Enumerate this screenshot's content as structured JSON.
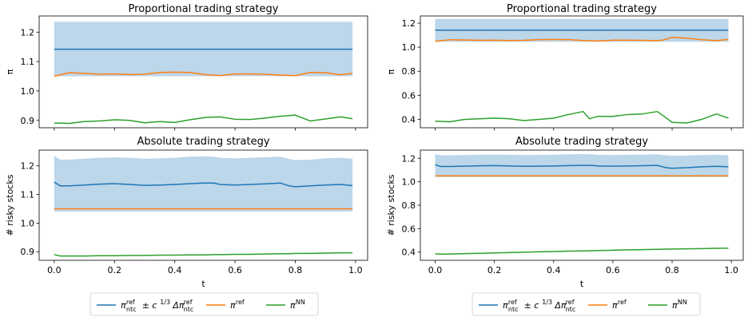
{
  "colors": {
    "band": "#a6c8e3",
    "ntc": "#1f77b4",
    "ref": "#ff7f0e",
    "nn": "#2ca02c"
  },
  "chart_data": [
    {
      "type": "line",
      "title": "Proportional trading strategy",
      "ylabel": "π",
      "xlabel": "",
      "xlim": [
        -0.05,
        1.04
      ],
      "ylim": [
        0.875,
        1.255
      ],
      "yticks": [
        0.9,
        1.0,
        1.1,
        1.2
      ],
      "yticklabels": [
        "0.9",
        "1.0",
        "1.1",
        "1.2"
      ],
      "xticks": [
        0.0,
        0.2,
        0.4,
        0.6,
        0.8,
        1.0
      ],
      "xticklabels": [],
      "x": [
        0.0,
        0.05,
        0.1,
        0.15,
        0.2,
        0.25,
        0.3,
        0.35,
        0.4,
        0.45,
        0.5,
        0.55,
        0.6,
        0.65,
        0.7,
        0.75,
        0.8,
        0.85,
        0.9,
        0.95,
        0.99
      ],
      "band": {
        "lower": [
          1.05,
          1.05,
          1.05,
          1.05,
          1.05,
          1.05,
          1.05,
          1.05,
          1.05,
          1.05,
          1.05,
          1.05,
          1.05,
          1.05,
          1.05,
          1.05,
          1.05,
          1.05,
          1.05,
          1.05,
          1.05
        ],
        "upper": [
          1.235,
          1.235,
          1.235,
          1.235,
          1.235,
          1.235,
          1.235,
          1.235,
          1.235,
          1.235,
          1.235,
          1.235,
          1.235,
          1.235,
          1.235,
          1.235,
          1.235,
          1.235,
          1.235,
          1.235,
          1.235
        ]
      },
      "series": [
        {
          "key": "ntc",
          "values": [
            1.142,
            1.142,
            1.142,
            1.142,
            1.142,
            1.142,
            1.142,
            1.142,
            1.142,
            1.142,
            1.142,
            1.142,
            1.142,
            1.142,
            1.142,
            1.142,
            1.142,
            1.142,
            1.142,
            1.142,
            1.142
          ]
        },
        {
          "key": "ref",
          "values": [
            1.05,
            1.062,
            1.06,
            1.057,
            1.058,
            1.056,
            1.057,
            1.063,
            1.064,
            1.063,
            1.056,
            1.052,
            1.058,
            1.058,
            1.057,
            1.054,
            1.052,
            1.063,
            1.062,
            1.055,
            1.06
          ]
        },
        {
          "key": "nn",
          "values": [
            0.891,
            0.89,
            0.896,
            0.898,
            0.902,
            0.9,
            0.892,
            0.896,
            0.893,
            0.902,
            0.91,
            0.912,
            0.904,
            0.903,
            0.908,
            0.914,
            0.918,
            0.898,
            0.905,
            0.912,
            0.906
          ]
        }
      ]
    },
    {
      "type": "line",
      "title": "Proportional trading strategy",
      "ylabel": "π",
      "xlabel": "",
      "xlim": [
        -0.05,
        1.04
      ],
      "ylim": [
        0.33,
        1.26
      ],
      "yticks": [
        0.4,
        0.6,
        0.8,
        1.0,
        1.2
      ],
      "yticklabels": [
        "0.4",
        "0.6",
        "0.8",
        "1.0",
        "1.2"
      ],
      "xticks": [
        0.0,
        0.2,
        0.4,
        0.6,
        0.8,
        1.0
      ],
      "xticklabels": [],
      "x": [
        0.0,
        0.05,
        0.1,
        0.15,
        0.2,
        0.25,
        0.3,
        0.35,
        0.4,
        0.45,
        0.5,
        0.52,
        0.55,
        0.6,
        0.65,
        0.7,
        0.75,
        0.77,
        0.8,
        0.85,
        0.9,
        0.95,
        0.99
      ],
      "band": {
        "lower": [
          1.045,
          1.045,
          1.045,
          1.045,
          1.045,
          1.045,
          1.045,
          1.045,
          1.045,
          1.045,
          1.045,
          1.045,
          1.045,
          1.045,
          1.045,
          1.045,
          1.045,
          1.045,
          1.045,
          1.045,
          1.045,
          1.045,
          1.045
        ],
        "upper": [
          1.235,
          1.235,
          1.235,
          1.235,
          1.235,
          1.235,
          1.235,
          1.235,
          1.235,
          1.235,
          1.235,
          1.235,
          1.235,
          1.235,
          1.235,
          1.235,
          1.235,
          1.235,
          1.235,
          1.235,
          1.235,
          1.235,
          1.235
        ]
      },
      "series": [
        {
          "key": "ntc",
          "values": [
            1.142,
            1.142,
            1.142,
            1.142,
            1.142,
            1.142,
            1.142,
            1.142,
            1.142,
            1.142,
            1.142,
            1.142,
            1.142,
            1.142,
            1.142,
            1.142,
            1.142,
            1.142,
            1.142,
            1.142,
            1.142,
            1.142,
            1.142
          ]
        },
        {
          "key": "ref",
          "values": [
            1.05,
            1.062,
            1.06,
            1.057,
            1.058,
            1.056,
            1.057,
            1.063,
            1.064,
            1.063,
            1.056,
            1.055,
            1.052,
            1.058,
            1.058,
            1.057,
            1.054,
            1.06,
            1.082,
            1.075,
            1.062,
            1.055,
            1.065
          ]
        },
        {
          "key": "nn",
          "values": [
            0.385,
            0.38,
            0.4,
            0.405,
            0.41,
            0.405,
            0.39,
            0.4,
            0.41,
            0.44,
            0.465,
            0.405,
            0.425,
            0.425,
            0.44,
            0.445,
            0.465,
            0.43,
            0.375,
            0.37,
            0.4,
            0.445,
            0.41
          ]
        }
      ]
    },
    {
      "type": "line",
      "title": "Absolute trading strategy",
      "ylabel": "# risky stocks",
      "xlabel": "t",
      "xlim": [
        -0.05,
        1.04
      ],
      "ylim": [
        0.87,
        1.255
      ],
      "yticks": [
        0.9,
        1.0,
        1.1,
        1.2
      ],
      "yticklabels": [
        "0.9",
        "1.0",
        "1.1",
        "1.2"
      ],
      "xticks": [
        0.0,
        0.2,
        0.4,
        0.6,
        0.8,
        1.0
      ],
      "xticklabels": [
        "0.0",
        "0.2",
        "0.4",
        "0.6",
        "0.8",
        "1.0"
      ],
      "x": [
        0.0,
        0.02,
        0.05,
        0.1,
        0.15,
        0.2,
        0.25,
        0.3,
        0.35,
        0.4,
        0.45,
        0.5,
        0.53,
        0.55,
        0.6,
        0.65,
        0.7,
        0.75,
        0.78,
        0.8,
        0.85,
        0.9,
        0.95,
        0.99
      ],
      "band": {
        "lower": [
          1.04,
          1.04,
          1.04,
          1.04,
          1.04,
          1.04,
          1.04,
          1.04,
          1.04,
          1.04,
          1.04,
          1.04,
          1.04,
          1.04,
          1.04,
          1.04,
          1.04,
          1.04,
          1.04,
          1.04,
          1.04,
          1.04,
          1.04,
          1.04
        ],
        "upper": [
          1.235,
          1.222,
          1.222,
          1.225,
          1.228,
          1.23,
          1.228,
          1.225,
          1.226,
          1.228,
          1.232,
          1.233,
          1.232,
          1.228,
          1.226,
          1.228,
          1.23,
          1.232,
          1.224,
          1.22,
          1.222,
          1.226,
          1.228,
          1.225
        ]
      },
      "series": [
        {
          "key": "ntc",
          "values": [
            1.143,
            1.13,
            1.13,
            1.133,
            1.136,
            1.138,
            1.135,
            1.132,
            1.133,
            1.135,
            1.138,
            1.14,
            1.14,
            1.135,
            1.133,
            1.135,
            1.137,
            1.14,
            1.13,
            1.127,
            1.13,
            1.133,
            1.135,
            1.131
          ]
        },
        {
          "key": "ref",
          "values": [
            1.05,
            1.05,
            1.05,
            1.05,
            1.05,
            1.05,
            1.05,
            1.05,
            1.05,
            1.05,
            1.05,
            1.05,
            1.05,
            1.05,
            1.05,
            1.05,
            1.05,
            1.05,
            1.05,
            1.05,
            1.05,
            1.05,
            1.05,
            1.05
          ]
        },
        {
          "key": "nn",
          "values": [
            0.89,
            0.885,
            0.885,
            0.885,
            0.886,
            0.886,
            0.887,
            0.887,
            0.888,
            0.888,
            0.889,
            0.889,
            0.89,
            0.89,
            0.891,
            0.891,
            0.892,
            0.893,
            0.893,
            0.894,
            0.894,
            0.895,
            0.896,
            0.896
          ]
        }
      ]
    },
    {
      "type": "line",
      "title": "Absolute trading strategy",
      "ylabel": "# risky stocks",
      "xlabel": "t",
      "xlim": [
        -0.05,
        1.04
      ],
      "ylim": [
        0.33,
        1.27
      ],
      "yticks": [
        0.4,
        0.6,
        0.8,
        1.0,
        1.2
      ],
      "yticklabels": [
        "0.4",
        "0.6",
        "0.8",
        "1.0",
        "1.2"
      ],
      "xticks": [
        0.0,
        0.2,
        0.4,
        0.6,
        0.8,
        1.0
      ],
      "xticklabels": [
        "0.0",
        "0.2",
        "0.4",
        "0.6",
        "0.8",
        "1.0"
      ],
      "x": [
        0.0,
        0.02,
        0.05,
        0.1,
        0.15,
        0.2,
        0.25,
        0.3,
        0.35,
        0.4,
        0.45,
        0.5,
        0.53,
        0.55,
        0.6,
        0.65,
        0.7,
        0.75,
        0.78,
        0.8,
        0.85,
        0.9,
        0.95,
        0.99
      ],
      "band": {
        "lower": [
          1.04,
          1.04,
          1.04,
          1.04,
          1.04,
          1.04,
          1.04,
          1.04,
          1.04,
          1.04,
          1.04,
          1.04,
          1.04,
          1.04,
          1.04,
          1.04,
          1.04,
          1.04,
          1.04,
          1.04,
          1.04,
          1.04,
          1.04,
          1.04
        ],
        "upper": [
          1.235,
          1.225,
          1.226,
          1.228,
          1.23,
          1.232,
          1.23,
          1.228,
          1.229,
          1.23,
          1.234,
          1.236,
          1.234,
          1.23,
          1.228,
          1.23,
          1.232,
          1.234,
          1.226,
          1.222,
          1.224,
          1.228,
          1.23,
          1.226
        ]
      },
      "series": [
        {
          "key": "ntc",
          "values": [
            1.145,
            1.13,
            1.13,
            1.133,
            1.136,
            1.138,
            1.135,
            1.132,
            1.133,
            1.135,
            1.138,
            1.14,
            1.14,
            1.135,
            1.133,
            1.135,
            1.137,
            1.14,
            1.12,
            1.115,
            1.12,
            1.128,
            1.132,
            1.128
          ]
        },
        {
          "key": "ref",
          "values": [
            1.05,
            1.05,
            1.05,
            1.05,
            1.05,
            1.05,
            1.05,
            1.05,
            1.05,
            1.05,
            1.05,
            1.05,
            1.05,
            1.05,
            1.05,
            1.05,
            1.05,
            1.05,
            1.05,
            1.05,
            1.05,
            1.05,
            1.05,
            1.05
          ]
        },
        {
          "key": "nn",
          "values": [
            0.385,
            0.383,
            0.384,
            0.387,
            0.39,
            0.393,
            0.396,
            0.399,
            0.402,
            0.405,
            0.408,
            0.41,
            0.412,
            0.413,
            0.416,
            0.419,
            0.421,
            0.424,
            0.425,
            0.426,
            0.428,
            0.43,
            0.432,
            0.434
          ]
        }
      ]
    }
  ],
  "legends": [
    {
      "entries": [
        {
          "key": "ntc",
          "parts": [
            {
              "t": "π"
            },
            {
              "sup": "ref",
              "sub": "ntc"
            },
            {
              "t": " ± c"
            },
            {
              "sup": "1/3"
            },
            {
              "t": "Δπ"
            },
            {
              "sup": "ref",
              "sub": "ntc"
            }
          ]
        },
        {
          "key": "ref",
          "parts": [
            {
              "t": "π"
            },
            {
              "sup": "ref"
            }
          ]
        },
        {
          "key": "nn",
          "parts": [
            {
              "t": "π"
            },
            {
              "sup": "NN"
            }
          ]
        }
      ]
    },
    {
      "entries": [
        {
          "key": "ntc",
          "parts": [
            {
              "t": "π"
            },
            {
              "sup": "ref",
              "sub": "ntc"
            },
            {
              "t": " ± c"
            },
            {
              "sup": "1/3"
            },
            {
              "t": "Δπ"
            },
            {
              "sup": "ref",
              "sub": "ntc"
            }
          ]
        },
        {
          "key": "ref",
          "parts": [
            {
              "t": "π"
            },
            {
              "sup": "ref"
            }
          ]
        },
        {
          "key": "nn",
          "parts": [
            {
              "t": "π"
            },
            {
              "sup": "NN"
            }
          ]
        }
      ]
    }
  ]
}
